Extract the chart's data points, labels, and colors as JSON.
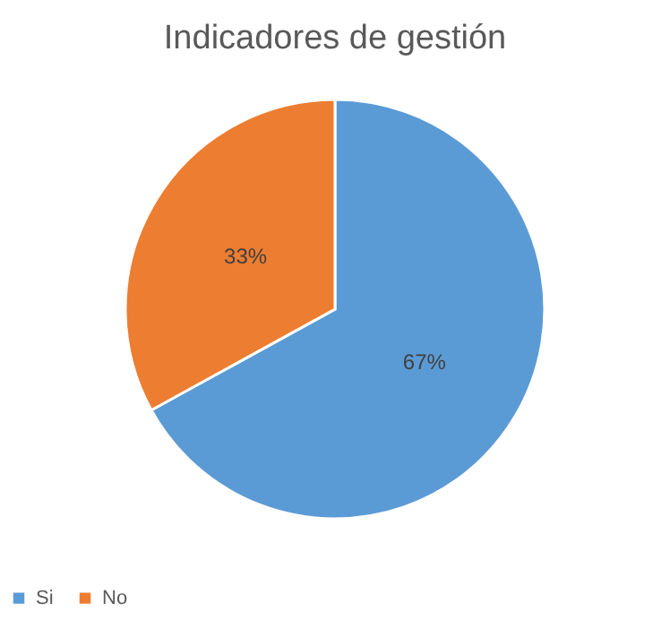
{
  "chart_data": {
    "type": "pie",
    "title": "Indicadores de gestión",
    "categories": [
      "Si",
      "No"
    ],
    "values": [
      67,
      33
    ],
    "colors": [
      "#5b9bd5",
      "#ed7d31"
    ],
    "value_labels": [
      "67%",
      "33%"
    ],
    "legend": "bottom"
  }
}
